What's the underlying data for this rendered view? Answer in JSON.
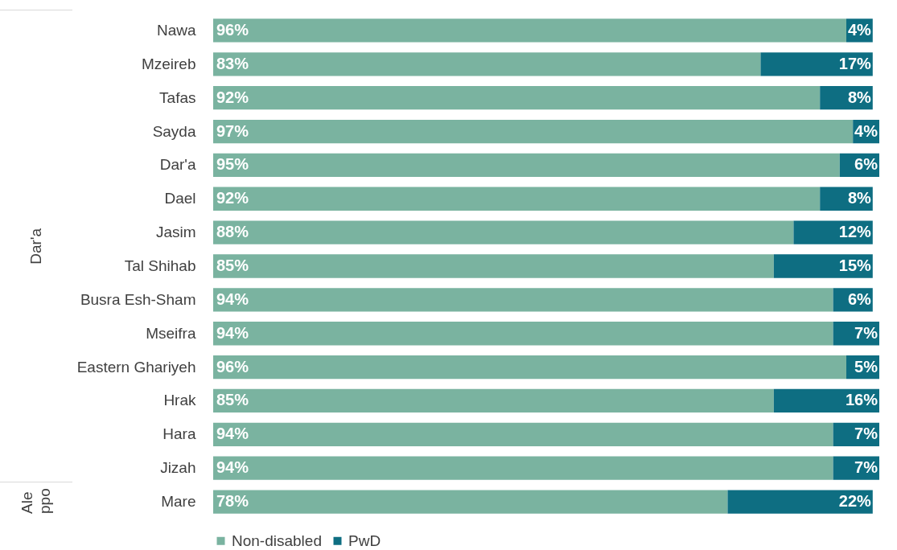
{
  "chart_data": {
    "type": "bar",
    "orientation": "horizontal",
    "stacked": true,
    "legend": "bottom",
    "categories": [
      "Nawa",
      "Mzeireb",
      "Tafas",
      "Sayda",
      "Dar'a",
      "Dael",
      "Jasim",
      "Tal Shihab",
      "Busra Esh-Sham",
      "Mseifra",
      "Eastern Ghariyeh",
      "Hrak",
      "Hara",
      "Jizah",
      "Mare"
    ],
    "series": [
      {
        "name": "Non-disabled",
        "color": "#7ab3a0",
        "values": [
          96,
          83,
          92,
          97,
          95,
          92,
          88,
          85,
          94,
          94,
          96,
          85,
          94,
          94,
          78
        ],
        "value_labels": [
          "96%",
          "83%",
          "92%",
          "97%",
          "95%",
          "92%",
          "88%",
          "85%",
          "94%",
          "94%",
          "96%",
          "85%",
          "94%",
          "94%",
          "78%"
        ]
      },
      {
        "name": "PwD",
        "color": "#0e6e82",
        "values": [
          4,
          17,
          8,
          4,
          6,
          8,
          12,
          15,
          6,
          7,
          5,
          16,
          7,
          7,
          22
        ],
        "value_labels": [
          "4%",
          "17%",
          "8%",
          "4%",
          "6%",
          "8%",
          "12%",
          "15%",
          "6%",
          "7%",
          "5%",
          "16%",
          "7%",
          "7%",
          "22%"
        ]
      }
    ],
    "annotations": [
      "Dar'a",
      "Aleppo"
    ]
  }
}
